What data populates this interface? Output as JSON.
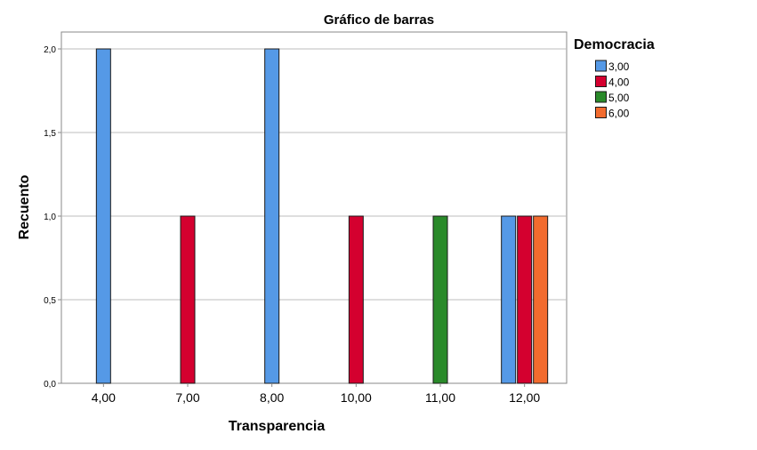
{
  "chart_data": {
    "type": "bar",
    "title": "Gráfico de barras",
    "xlabel": "Transparencia",
    "ylabel": "Recuento",
    "categories": [
      "4,00",
      "7,00",
      "8,00",
      "10,00",
      "11,00",
      "12,00"
    ],
    "series": [
      {
        "name": "3,00",
        "color": "#5599e6",
        "values": [
          2,
          0,
          2,
          0,
          0,
          1
        ]
      },
      {
        "name": "4,00",
        "color": "#d4002f",
        "values": [
          0,
          1,
          0,
          1,
          0,
          1
        ]
      },
      {
        "name": "5,00",
        "color": "#2a8a2a",
        "values": [
          0,
          0,
          0,
          0,
          1,
          0
        ]
      },
      {
        "name": "6,00",
        "color": "#f26b2e",
        "values": [
          0,
          0,
          0,
          0,
          0,
          1
        ]
      }
    ],
    "ylim": [
      0,
      2
    ],
    "yticks": [
      "0,0",
      "0,5",
      "1,0",
      "1,5",
      "2,0"
    ],
    "legend_title": "Democracia",
    "legend_position": "right",
    "grid": true
  }
}
